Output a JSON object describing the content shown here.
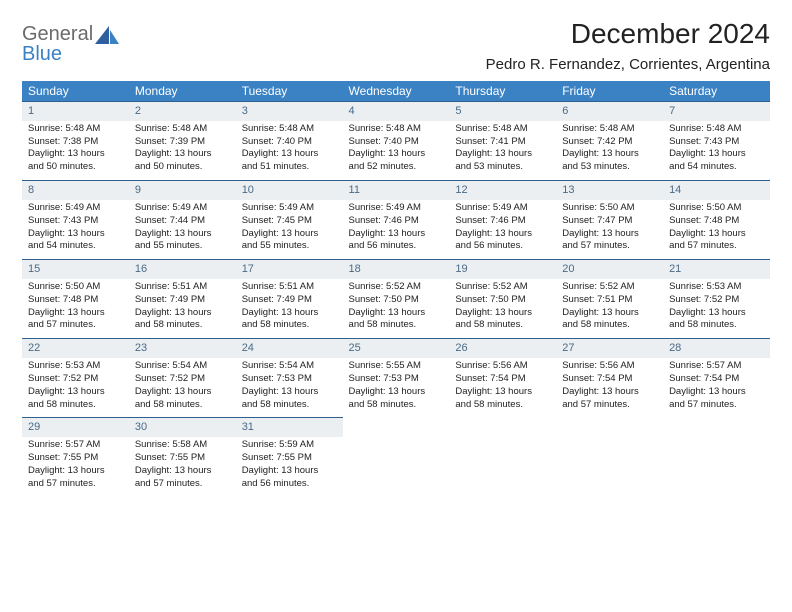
{
  "logo": {
    "line1": "General",
    "line2": "Blue"
  },
  "title": "December 2024",
  "location": "Pedro R. Fernandez, Corrientes, Argentina",
  "colors": {
    "header_bg": "#3b82c4",
    "header_text": "#ffffff",
    "daynum_bg": "#eceff1",
    "daynum_text": "#4a6a88",
    "daynum_border": "#2f5f8f",
    "body_text": "#222222",
    "logo_gray": "#6b6b6b",
    "logo_blue": "#3b82c4"
  },
  "weekdays": [
    "Sunday",
    "Monday",
    "Tuesday",
    "Wednesday",
    "Thursday",
    "Friday",
    "Saturday"
  ],
  "days": [
    {
      "n": "1",
      "sunrise": "5:48 AM",
      "sunset": "7:38 PM",
      "daylight": "13 hours and 50 minutes."
    },
    {
      "n": "2",
      "sunrise": "5:48 AM",
      "sunset": "7:39 PM",
      "daylight": "13 hours and 50 minutes."
    },
    {
      "n": "3",
      "sunrise": "5:48 AM",
      "sunset": "7:40 PM",
      "daylight": "13 hours and 51 minutes."
    },
    {
      "n": "4",
      "sunrise": "5:48 AM",
      "sunset": "7:40 PM",
      "daylight": "13 hours and 52 minutes."
    },
    {
      "n": "5",
      "sunrise": "5:48 AM",
      "sunset": "7:41 PM",
      "daylight": "13 hours and 53 minutes."
    },
    {
      "n": "6",
      "sunrise": "5:48 AM",
      "sunset": "7:42 PM",
      "daylight": "13 hours and 53 minutes."
    },
    {
      "n": "7",
      "sunrise": "5:48 AM",
      "sunset": "7:43 PM",
      "daylight": "13 hours and 54 minutes."
    },
    {
      "n": "8",
      "sunrise": "5:49 AM",
      "sunset": "7:43 PM",
      "daylight": "13 hours and 54 minutes."
    },
    {
      "n": "9",
      "sunrise": "5:49 AM",
      "sunset": "7:44 PM",
      "daylight": "13 hours and 55 minutes."
    },
    {
      "n": "10",
      "sunrise": "5:49 AM",
      "sunset": "7:45 PM",
      "daylight": "13 hours and 55 minutes."
    },
    {
      "n": "11",
      "sunrise": "5:49 AM",
      "sunset": "7:46 PM",
      "daylight": "13 hours and 56 minutes."
    },
    {
      "n": "12",
      "sunrise": "5:49 AM",
      "sunset": "7:46 PM",
      "daylight": "13 hours and 56 minutes."
    },
    {
      "n": "13",
      "sunrise": "5:50 AM",
      "sunset": "7:47 PM",
      "daylight": "13 hours and 57 minutes."
    },
    {
      "n": "14",
      "sunrise": "5:50 AM",
      "sunset": "7:48 PM",
      "daylight": "13 hours and 57 minutes."
    },
    {
      "n": "15",
      "sunrise": "5:50 AM",
      "sunset": "7:48 PM",
      "daylight": "13 hours and 57 minutes."
    },
    {
      "n": "16",
      "sunrise": "5:51 AM",
      "sunset": "7:49 PM",
      "daylight": "13 hours and 58 minutes."
    },
    {
      "n": "17",
      "sunrise": "5:51 AM",
      "sunset": "7:49 PM",
      "daylight": "13 hours and 58 minutes."
    },
    {
      "n": "18",
      "sunrise": "5:52 AM",
      "sunset": "7:50 PM",
      "daylight": "13 hours and 58 minutes."
    },
    {
      "n": "19",
      "sunrise": "5:52 AM",
      "sunset": "7:50 PM",
      "daylight": "13 hours and 58 minutes."
    },
    {
      "n": "20",
      "sunrise": "5:52 AM",
      "sunset": "7:51 PM",
      "daylight": "13 hours and 58 minutes."
    },
    {
      "n": "21",
      "sunrise": "5:53 AM",
      "sunset": "7:52 PM",
      "daylight": "13 hours and 58 minutes."
    },
    {
      "n": "22",
      "sunrise": "5:53 AM",
      "sunset": "7:52 PM",
      "daylight": "13 hours and 58 minutes."
    },
    {
      "n": "23",
      "sunrise": "5:54 AM",
      "sunset": "7:52 PM",
      "daylight": "13 hours and 58 minutes."
    },
    {
      "n": "24",
      "sunrise": "5:54 AM",
      "sunset": "7:53 PM",
      "daylight": "13 hours and 58 minutes."
    },
    {
      "n": "25",
      "sunrise": "5:55 AM",
      "sunset": "7:53 PM",
      "daylight": "13 hours and 58 minutes."
    },
    {
      "n": "26",
      "sunrise": "5:56 AM",
      "sunset": "7:54 PM",
      "daylight": "13 hours and 58 minutes."
    },
    {
      "n": "27",
      "sunrise": "5:56 AM",
      "sunset": "7:54 PM",
      "daylight": "13 hours and 57 minutes."
    },
    {
      "n": "28",
      "sunrise": "5:57 AM",
      "sunset": "7:54 PM",
      "daylight": "13 hours and 57 minutes."
    },
    {
      "n": "29",
      "sunrise": "5:57 AM",
      "sunset": "7:55 PM",
      "daylight": "13 hours and 57 minutes."
    },
    {
      "n": "30",
      "sunrise": "5:58 AM",
      "sunset": "7:55 PM",
      "daylight": "13 hours and 57 minutes."
    },
    {
      "n": "31",
      "sunrise": "5:59 AM",
      "sunset": "7:55 PM",
      "daylight": "13 hours and 56 minutes."
    }
  ],
  "labels": {
    "sunrise": "Sunrise:",
    "sunset": "Sunset:",
    "daylight": "Daylight:"
  }
}
